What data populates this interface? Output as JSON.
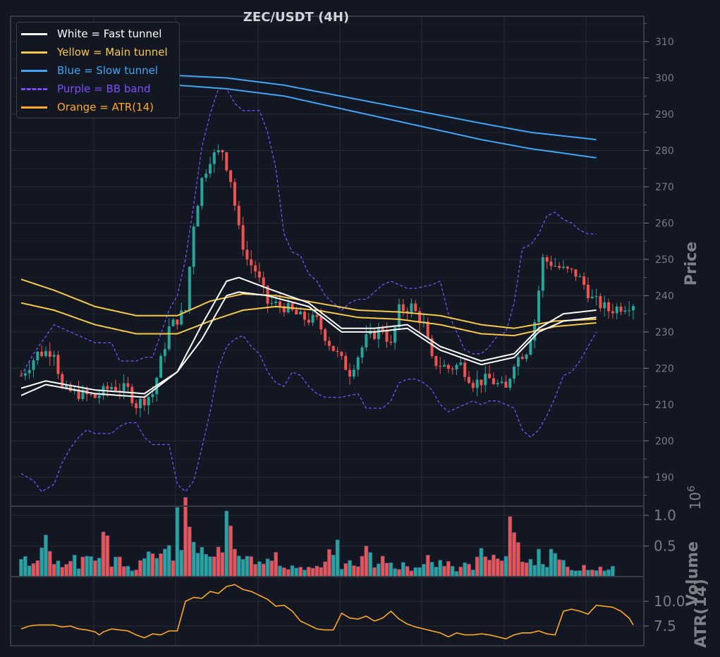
{
  "chart_data": {
    "title": "ZEC/USDT (4H)",
    "type": "candlestick",
    "price_axis": {
      "label": "Price",
      "ylim": [
        182,
        317
      ],
      "ticks": [
        190,
        200,
        210,
        220,
        230,
        240,
        250,
        260,
        270,
        280,
        290,
        300,
        310
      ]
    },
    "volume_axis": {
      "label": "Volume",
      "multiplier_label": "10^6",
      "ylim": [
        0,
        1.15
      ],
      "ticks": [
        0.5,
        1.0
      ],
      "tick_labels": [
        "0.5",
        "1.0"
      ]
    },
    "atr_axis": {
      "label": "ATR(14)",
      "ylim": [
        5.5,
        12.5
      ],
      "ticks": [
        7.5,
        10.0
      ],
      "tick_labels": [
        "7.5",
        "10.0"
      ]
    },
    "grid": true,
    "legend_position": "top-left",
    "legend": [
      {
        "label": "White = Fast tunnel",
        "color": "#ffffff",
        "style": "solid"
      },
      {
        "label": "Yellow = Main tunnel",
        "color": "#f7c948",
        "style": "solid"
      },
      {
        "label": "Blue = Slow tunnel",
        "color": "#42a5f5",
        "style": "solid"
      },
      {
        "label": "Purple = BB band",
        "color": "#7c4dff",
        "style": "dashed"
      },
      {
        "label": "Orange = ATR(14)",
        "color": "#ffa726",
        "style": "solid"
      }
    ],
    "colors": {
      "up": "#26a69a",
      "down": "#ef5350",
      "background": "#131722",
      "grid": "#262b36"
    },
    "candle_count": 150,
    "close_anchors": [
      [
        0,
        218
      ],
      [
        4,
        224
      ],
      [
        8,
        225
      ],
      [
        10,
        214
      ],
      [
        14,
        213
      ],
      [
        18,
        212
      ],
      [
        22,
        215
      ],
      [
        26,
        214
      ],
      [
        28,
        210
      ],
      [
        32,
        213
      ],
      [
        36,
        231
      ],
      [
        40,
        236
      ],
      [
        42,
        260
      ],
      [
        44,
        272
      ],
      [
        46,
        278
      ],
      [
        49,
        280
      ],
      [
        51,
        272
      ],
      [
        53,
        258
      ],
      [
        55,
        250
      ],
      [
        57,
        247
      ],
      [
        60,
        238
      ],
      [
        64,
        237
      ],
      [
        68,
        234
      ],
      [
        72,
        233
      ],
      [
        75,
        227
      ],
      [
        78,
        222
      ],
      [
        80,
        219
      ],
      [
        84,
        228
      ],
      [
        88,
        231
      ],
      [
        90,
        226
      ],
      [
        92,
        236
      ],
      [
        95,
        237
      ],
      [
        98,
        232
      ],
      [
        100,
        222
      ],
      [
        104,
        220
      ],
      [
        107,
        221
      ],
      [
        110,
        216
      ],
      [
        114,
        217
      ],
      [
        118,
        214
      ],
      [
        120,
        222
      ],
      [
        123,
        225
      ],
      [
        125,
        233
      ],
      [
        127,
        250
      ],
      [
        129,
        249
      ],
      [
        132,
        247
      ],
      [
        135,
        246
      ],
      [
        137,
        243
      ],
      [
        139,
        239
      ],
      [
        143,
        236
      ],
      [
        146,
        237
      ],
      [
        149,
        238
      ]
    ],
    "fast_tunnel_upper": [
      [
        0,
        214.5
      ],
      [
        6,
        216.5
      ],
      [
        18,
        214
      ],
      [
        30,
        213
      ],
      [
        38,
        219
      ],
      [
        44,
        232
      ],
      [
        50,
        244
      ],
      [
        53,
        245
      ],
      [
        60,
        242
      ],
      [
        70,
        238
      ],
      [
        78,
        231
      ],
      [
        86,
        231
      ],
      [
        94,
        232
      ],
      [
        102,
        226
      ],
      [
        112,
        222
      ],
      [
        120,
        224
      ],
      [
        126,
        231
      ],
      [
        132,
        235
      ],
      [
        140,
        236
      ]
    ],
    "fast_tunnel_lower": [
      [
        0,
        212.5
      ],
      [
        6,
        215.5
      ],
      [
        18,
        213
      ],
      [
        30,
        212
      ],
      [
        38,
        219
      ],
      [
        44,
        228
      ],
      [
        50,
        240
      ],
      [
        53,
        241
      ],
      [
        60,
        240
      ],
      [
        70,
        237
      ],
      [
        78,
        230
      ],
      [
        86,
        230
      ],
      [
        94,
        231
      ],
      [
        102,
        225
      ],
      [
        112,
        221
      ],
      [
        120,
        223
      ],
      [
        126,
        230
      ],
      [
        132,
        233
      ],
      [
        140,
        234
      ]
    ],
    "main_tunnel_upper": [
      [
        0,
        244.5
      ],
      [
        8,
        241.5
      ],
      [
        18,
        237
      ],
      [
        28,
        234.5
      ],
      [
        38,
        234.5
      ],
      [
        46,
        238.5
      ],
      [
        54,
        240.5
      ],
      [
        62,
        240
      ],
      [
        72,
        238
      ],
      [
        82,
        236
      ],
      [
        92,
        235.5
      ],
      [
        102,
        234.5
      ],
      [
        112,
        232
      ],
      [
        120,
        231
      ],
      [
        130,
        233
      ],
      [
        140,
        233.5
      ]
    ],
    "main_tunnel_lower": [
      [
        0,
        238
      ],
      [
        8,
        236
      ],
      [
        18,
        232
      ],
      [
        28,
        229.5
      ],
      [
        38,
        229.5
      ],
      [
        46,
        233
      ],
      [
        54,
        236
      ],
      [
        62,
        237
      ],
      [
        72,
        236
      ],
      [
        82,
        234
      ],
      [
        92,
        233.5
      ],
      [
        102,
        232
      ],
      [
        112,
        229.5
      ],
      [
        120,
        229
      ],
      [
        130,
        231.5
      ],
      [
        140,
        232.5
      ]
    ],
    "slow_tunnel_upper": [
      [
        0,
        311.5
      ],
      [
        10,
        307
      ],
      [
        20,
        303.5
      ],
      [
        32,
        301
      ],
      [
        50,
        300
      ],
      [
        64,
        298
      ],
      [
        80,
        294.5
      ],
      [
        96,
        291
      ],
      [
        112,
        287.5
      ],
      [
        124,
        285
      ],
      [
        140,
        283
      ]
    ],
    "slow_tunnel_lower": [
      [
        0,
        310
      ],
      [
        10,
        305
      ],
      [
        20,
        301
      ],
      [
        32,
        298.5
      ],
      [
        50,
        297
      ],
      [
        64,
        295
      ],
      [
        80,
        291
      ],
      [
        96,
        287
      ],
      [
        112,
        283
      ],
      [
        124,
        280.5
      ],
      [
        140,
        278
      ]
    ],
    "bb_upper": [
      [
        0,
        218
      ],
      [
        3,
        224
      ],
      [
        8,
        232
      ],
      [
        12,
        230
      ],
      [
        18,
        227
      ],
      [
        22,
        227
      ],
      [
        24,
        222
      ],
      [
        28,
        222
      ],
      [
        30,
        223
      ],
      [
        32,
        223
      ],
      [
        36,
        236
      ],
      [
        38,
        240
      ],
      [
        40,
        250
      ],
      [
        42,
        265
      ],
      [
        44,
        281
      ],
      [
        46,
        290
      ],
      [
        48,
        297
      ],
      [
        50,
        297
      ],
      [
        52,
        293
      ],
      [
        54,
        291
      ],
      [
        58,
        291
      ],
      [
        60,
        285
      ],
      [
        62,
        275
      ],
      [
        64,
        257
      ],
      [
        66,
        252
      ],
      [
        68,
        251
      ],
      [
        70,
        246
      ],
      [
        72,
        244
      ],
      [
        74,
        240
      ],
      [
        76,
        238
      ],
      [
        78,
        236
      ],
      [
        80,
        238
      ],
      [
        82,
        239
      ],
      [
        84,
        239
      ],
      [
        86,
        241
      ],
      [
        88,
        243
      ],
      [
        90,
        244
      ],
      [
        92,
        243
      ],
      [
        94,
        242
      ],
      [
        96,
        242
      ],
      [
        98,
        242.5
      ],
      [
        100,
        243
      ],
      [
        102,
        244
      ],
      [
        104,
        235
      ],
      [
        106,
        230
      ],
      [
        108,
        225
      ],
      [
        110,
        224
      ],
      [
        112,
        224
      ],
      [
        114,
        226
      ],
      [
        116,
        229
      ],
      [
        118,
        230
      ],
      [
        120,
        238
      ],
      [
        122,
        253
      ],
      [
        124,
        254
      ],
      [
        126,
        257
      ],
      [
        128,
        262
      ],
      [
        130,
        263
      ],
      [
        132,
        261
      ],
      [
        134,
        260
      ],
      [
        136,
        258
      ],
      [
        138,
        257
      ],
      [
        140,
        257
      ]
    ],
    "bb_lower": [
      [
        0,
        191
      ],
      [
        3,
        189
      ],
      [
        5,
        186
      ],
      [
        8,
        188
      ],
      [
        10,
        194
      ],
      [
        12,
        198
      ],
      [
        14,
        201
      ],
      [
        16,
        203
      ],
      [
        18,
        202
      ],
      [
        22,
        202
      ],
      [
        24,
        204
      ],
      [
        26,
        205
      ],
      [
        28,
        205
      ],
      [
        30,
        201
      ],
      [
        32,
        199
      ],
      [
        36,
        199
      ],
      [
        38,
        188
      ],
      [
        40,
        186
      ],
      [
        42,
        189
      ],
      [
        44,
        198
      ],
      [
        46,
        208
      ],
      [
        48,
        220
      ],
      [
        50,
        226
      ],
      [
        52,
        228
      ],
      [
        54,
        229
      ],
      [
        56,
        226
      ],
      [
        58,
        224
      ],
      [
        60,
        219
      ],
      [
        62,
        216
      ],
      [
        64,
        215
      ],
      [
        66,
        219
      ],
      [
        68,
        218
      ],
      [
        70,
        215
      ],
      [
        72,
        213
      ],
      [
        74,
        212
      ],
      [
        78,
        212
      ],
      [
        82,
        213
      ],
      [
        84,
        209
      ],
      [
        86,
        209
      ],
      [
        88,
        209
      ],
      [
        90,
        211
      ],
      [
        92,
        216
      ],
      [
        94,
        217
      ],
      [
        96,
        217
      ],
      [
        98,
        216
      ],
      [
        100,
        214
      ],
      [
        102,
        210
      ],
      [
        104,
        208
      ],
      [
        106,
        209
      ],
      [
        108,
        210
      ],
      [
        110,
        211
      ],
      [
        112,
        210
      ],
      [
        114,
        211
      ],
      [
        116,
        211
      ],
      [
        118,
        210
      ],
      [
        120,
        209
      ],
      [
        122,
        203
      ],
      [
        124,
        201
      ],
      [
        126,
        203
      ],
      [
        128,
        207
      ],
      [
        130,
        212
      ],
      [
        132,
        218
      ],
      [
        134,
        219
      ],
      [
        136,
        222
      ],
      [
        138,
        226
      ],
      [
        140,
        230
      ]
    ],
    "volume_anchors": [
      [
        0,
        0.25
      ],
      [
        4,
        0.3
      ],
      [
        6,
        0.5
      ],
      [
        8,
        0.25
      ],
      [
        10,
        0.25
      ],
      [
        12,
        0.4
      ],
      [
        14,
        0.15
      ],
      [
        16,
        0.35
      ],
      [
        18,
        0.3
      ],
      [
        20,
        0.55
      ],
      [
        22,
        0.2
      ],
      [
        24,
        0.3
      ],
      [
        26,
        0.15
      ],
      [
        28,
        0.15
      ],
      [
        30,
        0.3
      ],
      [
        32,
        0.45
      ],
      [
        34,
        0.3
      ],
      [
        36,
        0.45
      ],
      [
        38,
        0.3
      ],
      [
        40,
        1.0
      ],
      [
        42,
        0.45
      ],
      [
        44,
        0.4
      ],
      [
        46,
        0.55
      ],
      [
        48,
        0.45
      ],
      [
        50,
        0.8
      ],
      [
        52,
        0.35
      ],
      [
        54,
        0.25
      ],
      [
        56,
        0.3
      ],
      [
        58,
        0.35
      ],
      [
        60,
        0.25
      ],
      [
        62,
        0.4
      ],
      [
        64,
        0.15
      ],
      [
        66,
        0.2
      ],
      [
        68,
        0.2
      ],
      [
        70,
        0.15
      ],
      [
        72,
        0.2
      ],
      [
        74,
        0.25
      ],
      [
        76,
        0.55
      ],
      [
        78,
        0.15
      ],
      [
        80,
        0.2
      ],
      [
        82,
        0.15
      ],
      [
        84,
        0.4
      ],
      [
        86,
        0.2
      ],
      [
        88,
        0.25
      ],
      [
        90,
        0.2
      ],
      [
        92,
        0.2
      ],
      [
        94,
        0.15
      ],
      [
        96,
        0.15
      ],
      [
        98,
        0.35
      ],
      [
        100,
        0.25
      ],
      [
        102,
        0.2
      ],
      [
        104,
        0.2
      ],
      [
        106,
        0.15
      ],
      [
        108,
        0.2
      ],
      [
        110,
        0.15
      ],
      [
        112,
        0.35
      ],
      [
        114,
        0.3
      ],
      [
        116,
        0.25
      ],
      [
        118,
        0.25
      ],
      [
        120,
        0.85
      ],
      [
        122,
        0.35
      ],
      [
        124,
        0.25
      ],
      [
        126,
        0.4
      ],
      [
        128,
        0.25
      ],
      [
        130,
        0.3
      ],
      [
        132,
        0.2
      ],
      [
        134,
        0.15
      ],
      [
        136,
        0.15
      ]
    ],
    "volume_spikes": [
      [
        38,
        1.13
      ],
      [
        6,
        0.68
      ],
      [
        21,
        0.67
      ],
      [
        51,
        0.83
      ],
      [
        77,
        0.6
      ],
      [
        119,
        0.98
      ],
      [
        120,
        0.72
      ],
      [
        126,
        0.45
      ],
      [
        129,
        0.45
      ]
    ],
    "atr_anchors": [
      [
        0,
        7.2
      ],
      [
        2,
        7.5
      ],
      [
        4,
        7.6
      ],
      [
        6,
        7.6
      ],
      [
        8,
        7.6
      ],
      [
        10,
        7.4
      ],
      [
        12,
        7.5
      ],
      [
        14,
        7.2
      ],
      [
        16,
        7.1
      ],
      [
        18,
        6.9
      ],
      [
        19,
        6.6
      ],
      [
        20,
        6.9
      ],
      [
        22,
        7.2
      ],
      [
        24,
        7.1
      ],
      [
        26,
        7.0
      ],
      [
        28,
        6.6
      ],
      [
        30,
        6.3
      ],
      [
        32,
        6.7
      ],
      [
        34,
        6.6
      ],
      [
        36,
        7.0
      ],
      [
        38,
        7.0
      ],
      [
        40,
        10.0
      ],
      [
        42,
        10.4
      ],
      [
        44,
        10.3
      ],
      [
        46,
        11.0
      ],
      [
        48,
        10.8
      ],
      [
        50,
        11.5
      ],
      [
        52,
        11.7
      ],
      [
        54,
        11.2
      ],
      [
        56,
        11.0
      ],
      [
        58,
        10.6
      ],
      [
        60,
        10.2
      ],
      [
        62,
        9.5
      ],
      [
        64,
        9.6
      ],
      [
        66,
        9.0
      ],
      [
        68,
        8.0
      ],
      [
        70,
        7.6
      ],
      [
        72,
        7.2
      ],
      [
        74,
        7.1
      ],
      [
        76,
        7.1
      ],
      [
        78,
        8.8
      ],
      [
        80,
        8.3
      ],
      [
        82,
        8.2
      ],
      [
        84,
        8.5
      ],
      [
        86,
        8.0
      ],
      [
        88,
        8.3
      ],
      [
        90,
        9.0
      ],
      [
        92,
        8.2
      ],
      [
        94,
        7.7
      ],
      [
        96,
        7.4
      ],
      [
        98,
        7.2
      ],
      [
        100,
        7.0
      ],
      [
        102,
        6.8
      ],
      [
        104,
        6.4
      ],
      [
        106,
        6.8
      ],
      [
        108,
        6.6
      ],
      [
        110,
        6.6
      ],
      [
        112,
        6.7
      ],
      [
        114,
        6.6
      ],
      [
        116,
        6.4
      ],
      [
        118,
        6.2
      ],
      [
        120,
        6.6
      ],
      [
        122,
        6.8
      ],
      [
        124,
        6.8
      ],
      [
        126,
        7.0
      ],
      [
        128,
        6.7
      ],
      [
        130,
        6.6
      ],
      [
        132,
        9.0
      ],
      [
        134,
        9.2
      ],
      [
        136,
        9.0
      ],
      [
        138,
        8.7
      ],
      [
        140,
        9.6
      ],
      [
        142,
        9.5
      ],
      [
        144,
        9.4
      ],
      [
        146,
        9.0
      ],
      [
        148,
        8.3
      ],
      [
        149,
        7.6
      ]
    ]
  }
}
